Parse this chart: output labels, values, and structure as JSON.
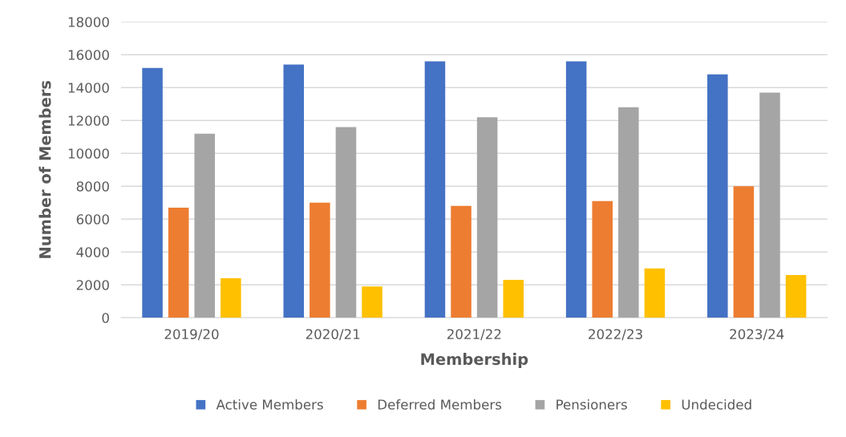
{
  "chart_data": {
    "type": "bar",
    "xlabel": "Membership",
    "ylabel": "Number of Members",
    "categories": [
      "2019/20",
      "2020/21",
      "2021/22",
      "2022/23",
      "2023/24"
    ],
    "series": [
      {
        "name": "Active Members",
        "color": "#4472c4",
        "values": [
          15200,
          15400,
          15600,
          15600,
          14800
        ]
      },
      {
        "name": "Deferred Members",
        "color": "#ed7d31",
        "values": [
          6700,
          7000,
          6800,
          7100,
          8000
        ]
      },
      {
        "name": "Pensioners",
        "color": "#a5a5a5",
        "values": [
          11200,
          11600,
          12200,
          12800,
          13700
        ]
      },
      {
        "name": "Undecided",
        "color": "#ffc000",
        "values": [
          2400,
          1900,
          2300,
          3000,
          2600
        ]
      }
    ],
    "ylim": [
      0,
      18000
    ],
    "yticks": [
      0,
      2000,
      4000,
      6000,
      8000,
      10000,
      12000,
      14000,
      16000,
      18000
    ],
    "grid": "y",
    "legend": "bottom"
  }
}
